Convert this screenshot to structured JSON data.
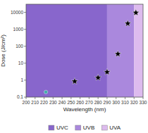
{
  "chart_data": {
    "type": "scatter",
    "xlabel": "Wavelength (nm)",
    "ylabel": "Dose (J/cm²)",
    "log": "y",
    "xlim": [
      200,
      330
    ],
    "ylim": [
      0.1,
      30000
    ],
    "xticks": [
      200,
      210,
      220,
      230,
      240,
      250,
      260,
      270,
      280,
      290,
      300,
      310,
      320,
      330
    ],
    "yticks": [
      0.1,
      1,
      10,
      100,
      1000,
      10000
    ],
    "regions": [
      {
        "name": "UVC",
        "color": "#8866cc",
        "range": [
          200,
          290
        ]
      },
      {
        "name": "UVB",
        "color": "#aa88dd",
        "range": [
          290,
          320
        ]
      },
      {
        "name": "UVA",
        "color": "#ddbbee",
        "range": [
          320,
          330
        ]
      }
    ],
    "series": [
      {
        "color": "#44aaaa",
        "marker": "circle",
        "x": [
          222
        ],
        "values": [
          0.2
        ]
      },
      {
        "color": "black",
        "marker": "star",
        "x": [
          254,
          280,
          290,
          302,
          313,
          322
        ],
        "values": [
          0.85,
          1.4,
          3.0,
          35,
          2200,
          9500
        ]
      }
    ],
    "legend": "bottom"
  }
}
